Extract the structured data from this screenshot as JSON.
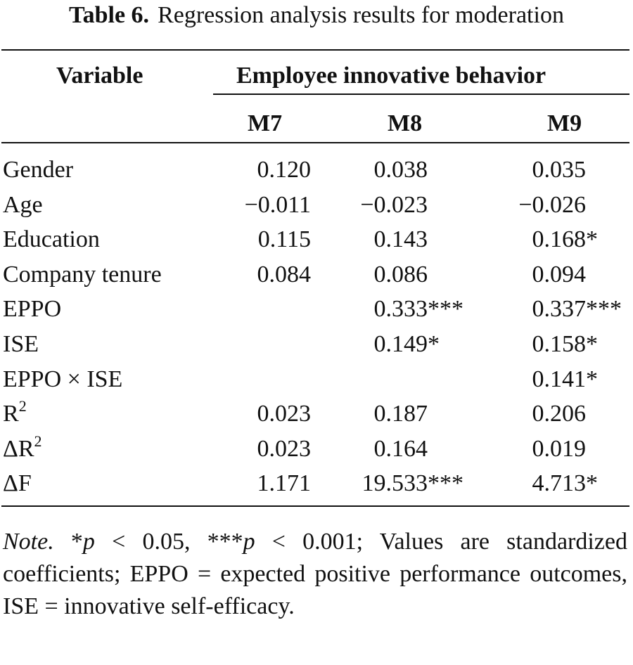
{
  "caption": {
    "label": "Table 6.",
    "text": "Regression analysis results for moderation"
  },
  "header": {
    "variable": "Variable",
    "group": "Employee innovative behavior",
    "models": [
      "M7",
      "M8",
      "M9"
    ]
  },
  "rows": [
    {
      "name": "Gender",
      "cells": [
        {
          "v": "0.120",
          "s": ""
        },
        {
          "v": "0.038",
          "s": ""
        },
        {
          "v": "0.035",
          "s": ""
        }
      ]
    },
    {
      "name": "Age",
      "cells": [
        {
          "v": "−0.011",
          "s": ""
        },
        {
          "v": "−0.023",
          "s": ""
        },
        {
          "v": "−0.026",
          "s": ""
        }
      ]
    },
    {
      "name": "Education",
      "cells": [
        {
          "v": "0.115",
          "s": ""
        },
        {
          "v": "0.143",
          "s": ""
        },
        {
          "v": "0.168",
          "s": "*"
        }
      ]
    },
    {
      "name": "Company tenure",
      "cells": [
        {
          "v": "0.084",
          "s": ""
        },
        {
          "v": "0.086",
          "s": ""
        },
        {
          "v": "0.094",
          "s": ""
        }
      ]
    },
    {
      "name": "EPPO",
      "cells": [
        {
          "v": "",
          "s": ""
        },
        {
          "v": "0.333",
          "s": "***"
        },
        {
          "v": "0.337",
          "s": "***"
        }
      ]
    },
    {
      "name": "ISE",
      "cells": [
        {
          "v": "",
          "s": ""
        },
        {
          "v": "0.149",
          "s": "*"
        },
        {
          "v": "0.158",
          "s": "*"
        }
      ]
    },
    {
      "name": "EPPO × ISE",
      "cells": [
        {
          "v": "",
          "s": ""
        },
        {
          "v": "",
          "s": ""
        },
        {
          "v": "0.141",
          "s": "*"
        }
      ]
    },
    {
      "name": "R",
      "sup": "2",
      "cells": [
        {
          "v": "0.023",
          "s": ""
        },
        {
          "v": "0.187",
          "s": ""
        },
        {
          "v": "0.206",
          "s": ""
        }
      ]
    },
    {
      "name": "ΔR",
      "sup": "2",
      "cells": [
        {
          "v": "0.023",
          "s": ""
        },
        {
          "v": "0.164",
          "s": ""
        },
        {
          "v": "0.019",
          "s": ""
        }
      ]
    },
    {
      "name": "ΔF",
      "cells": [
        {
          "v": "1.171",
          "s": ""
        },
        {
          "v": "19.533",
          "s": "***"
        },
        {
          "v": "4.713",
          "s": "*"
        }
      ]
    }
  ],
  "note": {
    "label": "Note.",
    "text_parts": [
      "*",
      "p",
      " < 0.05, ***",
      "p",
      " < 0.001; Values are standardized coefficients; EPPO = expected positive performance outcomes, ISE = innovative self-efficacy."
    ]
  }
}
